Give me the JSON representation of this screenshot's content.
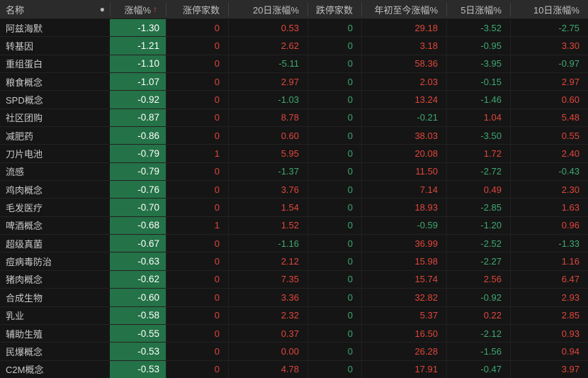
{
  "colors": {
    "background": "#151515",
    "header_bg": "#2b2b2b",
    "header_text": "#bfbfbf",
    "up_red": "#e0463c",
    "down_green": "#3fa871",
    "change_cell_bg": "#247247",
    "change_cell_text": "#ffffff"
  },
  "header": {
    "dot_icon": "●",
    "sort_arrow": "↑",
    "columns": [
      {
        "key": "name",
        "label": "名称"
      },
      {
        "key": "change",
        "label": "涨幅%"
      },
      {
        "key": "limit_up",
        "label": "涨停家数"
      },
      {
        "key": "chg20",
        "label": "20日涨幅%"
      },
      {
        "key": "limit_down",
        "label": "跌停家数"
      },
      {
        "key": "ytd",
        "label": "年初至今涨幅%"
      },
      {
        "key": "chg5",
        "label": "5日涨幅%"
      },
      {
        "key": "chg10",
        "label": "10日涨幅%"
      }
    ]
  },
  "rows": [
    {
      "name": "阿兹海默",
      "change": "-1.30",
      "limit_up": "0",
      "chg20": "0.53",
      "limit_down": "0",
      "ytd": "29.18",
      "chg5": "-3.52",
      "chg10": "-2.75"
    },
    {
      "name": "转基因",
      "change": "-1.21",
      "limit_up": "0",
      "chg20": "2.62",
      "limit_down": "0",
      "ytd": "3.18",
      "chg5": "-0.95",
      "chg10": "3.30"
    },
    {
      "name": "重组蛋白",
      "change": "-1.10",
      "limit_up": "0",
      "chg20": "-5.11",
      "limit_down": "0",
      "ytd": "58.36",
      "chg5": "-3.95",
      "chg10": "-0.97"
    },
    {
      "name": "粮食概念",
      "change": "-1.07",
      "limit_up": "0",
      "chg20": "2.97",
      "limit_down": "0",
      "ytd": "2.03",
      "chg5": "-0.15",
      "chg10": "2.97"
    },
    {
      "name": "SPD概念",
      "change": "-0.92",
      "limit_up": "0",
      "chg20": "-1.03",
      "limit_down": "0",
      "ytd": "13.24",
      "chg5": "-1.46",
      "chg10": "0.60"
    },
    {
      "name": "社区团购",
      "change": "-0.87",
      "limit_up": "0",
      "chg20": "8.78",
      "limit_down": "0",
      "ytd": "-0.21",
      "chg5": "1.04",
      "chg10": "5.48"
    },
    {
      "name": "减肥药",
      "change": "-0.86",
      "limit_up": "0",
      "chg20": "0.60",
      "limit_down": "0",
      "ytd": "38.03",
      "chg5": "-3.50",
      "chg10": "0.55"
    },
    {
      "name": "刀片电池",
      "change": "-0.79",
      "limit_up": "1",
      "chg20": "5.95",
      "limit_down": "0",
      "ytd": "20.08",
      "chg5": "1.72",
      "chg10": "2.40"
    },
    {
      "name": "流感",
      "change": "-0.79",
      "limit_up": "0",
      "chg20": "-1.37",
      "limit_down": "0",
      "ytd": "11.50",
      "chg5": "-2.72",
      "chg10": "-0.43"
    },
    {
      "name": "鸡肉概念",
      "change": "-0.76",
      "limit_up": "0",
      "chg20": "3.76",
      "limit_down": "0",
      "ytd": "7.14",
      "chg5": "0.49",
      "chg10": "2.30"
    },
    {
      "name": "毛发医疗",
      "change": "-0.70",
      "limit_up": "0",
      "chg20": "1.54",
      "limit_down": "0",
      "ytd": "18.93",
      "chg5": "-2.85",
      "chg10": "1.63"
    },
    {
      "name": "啤酒概念",
      "change": "-0.68",
      "limit_up": "1",
      "chg20": "1.52",
      "limit_down": "0",
      "ytd": "-0.59",
      "chg5": "-1.20",
      "chg10": "0.96"
    },
    {
      "name": "超级真菌",
      "change": "-0.67",
      "limit_up": "0",
      "chg20": "-1.16",
      "limit_down": "0",
      "ytd": "36.99",
      "chg5": "-2.52",
      "chg10": "-1.33"
    },
    {
      "name": "痘病毒防治",
      "change": "-0.63",
      "limit_up": "0",
      "chg20": "2.12",
      "limit_down": "0",
      "ytd": "15.98",
      "chg5": "-2.27",
      "chg10": "1.16"
    },
    {
      "name": "猪肉概念",
      "change": "-0.62",
      "limit_up": "0",
      "chg20": "7.35",
      "limit_down": "0",
      "ytd": "15.74",
      "chg5": "2.56",
      "chg10": "6.47"
    },
    {
      "name": "合成生物",
      "change": "-0.60",
      "limit_up": "0",
      "chg20": "3.36",
      "limit_down": "0",
      "ytd": "32.82",
      "chg5": "-0.92",
      "chg10": "2.93"
    },
    {
      "name": "乳业",
      "change": "-0.58",
      "limit_up": "0",
      "chg20": "2.32",
      "limit_down": "0",
      "ytd": "5.37",
      "chg5": "0.22",
      "chg10": "2.85"
    },
    {
      "name": "辅助生殖",
      "change": "-0.55",
      "limit_up": "0",
      "chg20": "0.37",
      "limit_down": "0",
      "ytd": "16.50",
      "chg5": "-2.12",
      "chg10": "0.93"
    },
    {
      "name": "民爆概念",
      "change": "-0.53",
      "limit_up": "0",
      "chg20": "0.00",
      "limit_down": "0",
      "ytd": "26.28",
      "chg5": "-1.56",
      "chg10": "0.94"
    },
    {
      "name": "C2M概念",
      "change": "-0.53",
      "limit_up": "0",
      "chg20": "4.78",
      "limit_down": "0",
      "ytd": "17.91",
      "chg5": "-0.47",
      "chg10": "3.97"
    }
  ]
}
